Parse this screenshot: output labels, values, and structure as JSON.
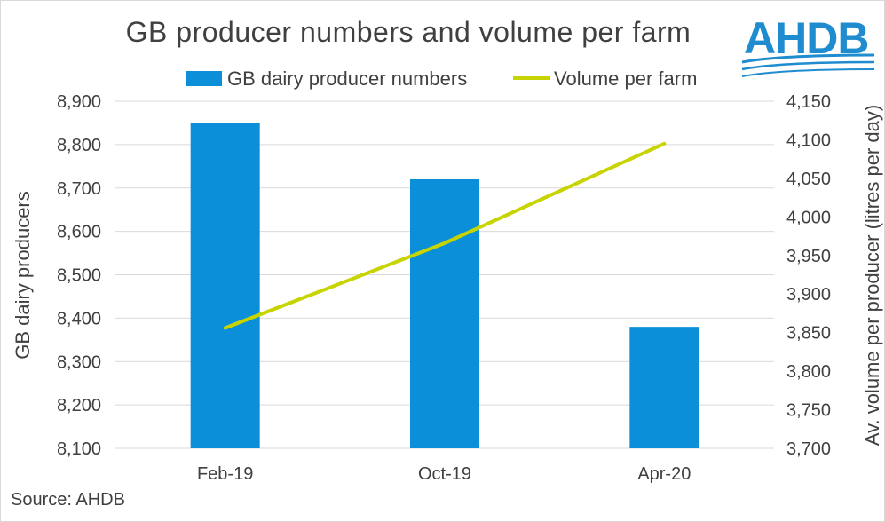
{
  "title": "GB producer numbers and volume per farm",
  "source": "Source: AHDB",
  "logo": {
    "text": "AHDB",
    "color": "#1f8ccf"
  },
  "chart_data": {
    "type": "bar+line",
    "categories": [
      "Feb-19",
      "Oct-19",
      "Apr-20"
    ],
    "series": [
      {
        "name": "GB dairy producer numbers",
        "type": "bar",
        "axis": "left",
        "values": [
          8850,
          8720,
          8380
        ],
        "color": "#0b8fd9"
      },
      {
        "name": "Volume per farm",
        "type": "line",
        "axis": "right",
        "values": [
          3856,
          3966,
          4095
        ],
        "color": "#c8d400"
      }
    ],
    "ylabel": "GB dairy producers",
    "y2label": "Av. volume per producer (litres per day)",
    "ylim": [
      8100,
      8900
    ],
    "y2lim": [
      3700,
      4150
    ],
    "yticks": [
      "8,100",
      "8,200",
      "8,300",
      "8,400",
      "8,500",
      "8,600",
      "8,700",
      "8,800",
      "8,900"
    ],
    "y2ticks": [
      "3,700",
      "3,750",
      "3,800",
      "3,850",
      "3,900",
      "3,950",
      "4,000",
      "4,050",
      "4,100",
      "4,150"
    ],
    "grid": true,
    "legend": "top"
  }
}
